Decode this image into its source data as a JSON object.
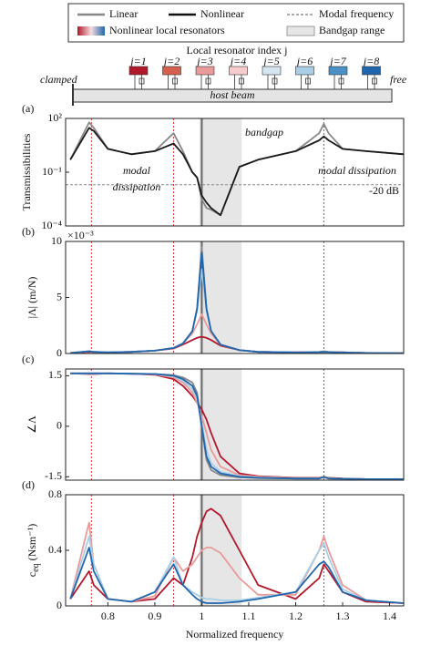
{
  "legend": {
    "items": [
      "Linear",
      "Nonlinear",
      "Modal frequency",
      "Nonlinear local resonators",
      "Bandgap range"
    ]
  },
  "schematic": {
    "title": "Local resonator index j",
    "left": "clamped",
    "right": "free",
    "beam": "host beam",
    "resonators": [
      "j=1",
      "j=2",
      "j=3",
      "j=4",
      "j=5",
      "j=6",
      "j=7",
      "j=8"
    ],
    "colors": [
      "#b2182b",
      "#d6604d",
      "#e99a9a",
      "#f7cccc",
      "#d4e6f1",
      "#a9cfe6",
      "#4a92c6",
      "#2166ac"
    ]
  },
  "reference": {
    "modal_frequencies": [
      0.765,
      0.94,
      1.26
    ],
    "bandgap": [
      0.995,
      1.085
    ],
    "resonance": 1.0
  },
  "chart_data": [
    {
      "type": "line",
      "panel": "(a)",
      "ylabel": "Transmissibilities",
      "yscale": "log",
      "xlim": [
        0.71,
        1.43
      ],
      "ylim": [
        0.0001,
        100
      ],
      "yticks": [
        {
          "value": 100,
          "label": "10²"
        },
        {
          "value": 0.1,
          "label": "10⁻¹"
        },
        {
          "value": 0.0001,
          "label": "10⁻⁴"
        }
      ],
      "threshold": 0.02,
      "annotations": [
        "bandgap",
        "modal",
        "dissipation",
        "modal dissipation",
        "-20 dB"
      ],
      "x": [
        0.72,
        0.76,
        0.77,
        0.8,
        0.85,
        0.9,
        0.94,
        0.96,
        0.98,
        0.99,
        1.0,
        1.01,
        1.02,
        1.04,
        1.08,
        1.12,
        1.2,
        1.25,
        1.26,
        1.27,
        1.3,
        1.35,
        1.43
      ],
      "series": [
        {
          "color": "#888888",
          "values": [
            0.5,
            60,
            30,
            2,
            1,
            1.5,
            15,
            1.5,
            0.1,
            0.05,
            0.003,
            0.001,
            0.0008,
            0.0004,
            0.2,
            0.5,
            1.5,
            15,
            50,
            15,
            2,
            1.5,
            1
          ]
        },
        {
          "color": "#1a1a1a",
          "values": [
            0.5,
            30,
            20,
            2,
            1,
            1.5,
            4,
            1,
            0.1,
            0.05,
            0.005,
            0.002,
            0.001,
            0.0004,
            0.2,
            0.5,
            1.5,
            6,
            10,
            6,
            2,
            1.5,
            1
          ]
        }
      ]
    },
    {
      "type": "line",
      "panel": "(b)",
      "ylabel": "|Λ| (m/N)",
      "multiplier": "×10⁻³",
      "xlim": [
        0.71,
        1.43
      ],
      "ylim": [
        0,
        10
      ],
      "yticks": [
        0,
        5,
        10
      ],
      "x": [
        0.72,
        0.76,
        0.77,
        0.8,
        0.85,
        0.9,
        0.94,
        0.96,
        0.98,
        0.99,
        1.0,
        1.01,
        1.02,
        1.04,
        1.08,
        1.12,
        1.2,
        1.25,
        1.26,
        1.27,
        1.3,
        1.35,
        1.43
      ],
      "series": [
        {
          "color": "#888888",
          "values": [
            0.05,
            0.2,
            0.15,
            0.1,
            0.15,
            0.25,
            0.5,
            0.9,
            2,
            4,
            9.5,
            4,
            2,
            0.8,
            0.3,
            0.15,
            0.1,
            0.15,
            0.2,
            0.15,
            0.1,
            0.05,
            0.03
          ]
        },
        {
          "color": "#b2182b",
          "values": [
            0.05,
            0.15,
            0.12,
            0.1,
            0.15,
            0.25,
            0.45,
            0.8,
            1.2,
            1.4,
            1.5,
            1.4,
            1.2,
            0.7,
            0.3,
            0.15,
            0.1,
            0.12,
            0.14,
            0.12,
            0.1,
            0.05,
            0.03
          ]
        },
        {
          "color": "#e99a9a",
          "values": [
            0.05,
            0.2,
            0.15,
            0.1,
            0.15,
            0.25,
            0.5,
            0.9,
            1.8,
            2.6,
            3.5,
            2.6,
            1.8,
            0.8,
            0.3,
            0.15,
            0.1,
            0.12,
            0.15,
            0.12,
            0.1,
            0.05,
            0.03
          ]
        },
        {
          "color": "#a9cfe6",
          "values": [
            0.05,
            0.2,
            0.15,
            0.1,
            0.15,
            0.25,
            0.5,
            0.9,
            2,
            3.8,
            7.5,
            3.8,
            2,
            0.8,
            0.3,
            0.15,
            0.1,
            0.12,
            0.15,
            0.12,
            0.1,
            0.05,
            0.03
          ]
        },
        {
          "color": "#2166ac",
          "values": [
            0.05,
            0.2,
            0.15,
            0.1,
            0.15,
            0.25,
            0.5,
            0.9,
            2,
            4,
            9,
            4,
            2,
            0.8,
            0.3,
            0.15,
            0.1,
            0.12,
            0.15,
            0.12,
            0.1,
            0.05,
            0.03
          ]
        }
      ]
    },
    {
      "type": "line",
      "panel": "(c)",
      "ylabel": "∠Λ",
      "xlim": [
        0.71,
        1.43
      ],
      "ylim": [
        -1.6,
        1.7
      ],
      "yticks": [
        1.5,
        0,
        -1.5
      ],
      "x": [
        0.72,
        0.76,
        0.77,
        0.8,
        0.85,
        0.9,
        0.94,
        0.96,
        0.98,
        0.99,
        1.0,
        1.01,
        1.02,
        1.04,
        1.08,
        1.12,
        1.2,
        1.25,
        1.26,
        1.27,
        1.3,
        1.35,
        1.43
      ],
      "series": [
        {
          "color": "#888888",
          "values": [
            1.57,
            1.57,
            1.57,
            1.57,
            1.56,
            1.55,
            1.52,
            1.45,
            1.3,
            1.0,
            0,
            -1.0,
            -1.3,
            -1.45,
            -1.52,
            -1.54,
            -1.55,
            -1.55,
            -1.52,
            -1.55,
            -1.56,
            -1.57,
            -1.57
          ]
        },
        {
          "color": "#b2182b",
          "values": [
            1.57,
            1.55,
            1.55,
            1.57,
            1.56,
            1.53,
            1.4,
            1.2,
            0.9,
            0.7,
            0.5,
            0.2,
            -0.2,
            -0.9,
            -1.4,
            -1.48,
            -1.53,
            -1.53,
            -1.5,
            -1.53,
            -1.55,
            -1.57,
            -1.57
          ]
        },
        {
          "color": "#e99a9a",
          "values": [
            1.57,
            1.57,
            1.57,
            1.57,
            1.56,
            1.54,
            1.45,
            1.3,
            1.0,
            0.7,
            0.3,
            -0.2,
            -0.7,
            -1.2,
            -1.45,
            -1.5,
            -1.54,
            -1.54,
            -1.5,
            -1.54,
            -1.56,
            -1.57,
            -1.57
          ]
        },
        {
          "color": "#a9cfe6",
          "values": [
            1.57,
            1.57,
            1.57,
            1.57,
            1.56,
            1.55,
            1.48,
            1.35,
            1.1,
            0.8,
            0.1,
            -0.7,
            -1.1,
            -1.35,
            -1.48,
            -1.52,
            -1.55,
            -1.55,
            -1.5,
            -1.55,
            -1.56,
            -1.57,
            -1.57
          ]
        },
        {
          "color": "#2166ac",
          "values": [
            1.57,
            1.57,
            1.57,
            1.57,
            1.56,
            1.55,
            1.5,
            1.4,
            1.2,
            0.9,
            0,
            -0.9,
            -1.2,
            -1.4,
            -1.5,
            -1.53,
            -1.55,
            -1.55,
            -1.5,
            -1.55,
            -1.56,
            -1.57,
            -1.57
          ]
        }
      ]
    },
    {
      "type": "line",
      "panel": "(d)",
      "ylabel": "c",
      "ylabel_sub": "eq",
      "ylabel_unit": "(Nsm⁻¹)",
      "xlabel": "Normalized frequency",
      "xlim": [
        0.71,
        1.43
      ],
      "ylim": [
        0,
        0.8
      ],
      "yticks": [
        0,
        0.4,
        0.8
      ],
      "xticks": [
        0.8,
        0.9,
        1,
        1.1,
        1.2,
        1.3,
        1.4
      ],
      "x": [
        0.72,
        0.76,
        0.77,
        0.8,
        0.85,
        0.9,
        0.94,
        0.96,
        0.98,
        0.99,
        1.0,
        1.01,
        1.02,
        1.04,
        1.08,
        1.12,
        1.2,
        1.25,
        1.26,
        1.27,
        1.3,
        1.35,
        1.43
      ],
      "series": [
        {
          "color": "#b2182b",
          "values": [
            0.05,
            0.25,
            0.15,
            0.05,
            0.03,
            0.05,
            0.2,
            0.15,
            0.35,
            0.5,
            0.6,
            0.68,
            0.7,
            0.65,
            0.4,
            0.15,
            0.05,
            0.2,
            0.3,
            0.25,
            0.1,
            0.03,
            0.02
          ]
        },
        {
          "color": "#e99a9a",
          "values": [
            0.05,
            0.6,
            0.3,
            0.05,
            0.03,
            0.07,
            0.35,
            0.25,
            0.3,
            0.35,
            0.4,
            0.42,
            0.42,
            0.38,
            0.2,
            0.08,
            0.08,
            0.4,
            0.5,
            0.4,
            0.15,
            0.04,
            0.02
          ]
        },
        {
          "color": "#a9cfe6",
          "values": [
            0.05,
            0.5,
            0.3,
            0.05,
            0.03,
            0.1,
            0.35,
            0.15,
            0.1,
            0.08,
            0.06,
            0.05,
            0.05,
            0.04,
            0.04,
            0.06,
            0.1,
            0.4,
            0.45,
            0.35,
            0.12,
            0.04,
            0.02
          ]
        },
        {
          "color": "#2166ac",
          "values": [
            0.05,
            0.42,
            0.25,
            0.05,
            0.03,
            0.1,
            0.3,
            0.15,
            0.08,
            0.05,
            0.03,
            0.02,
            0.02,
            0.02,
            0.03,
            0.05,
            0.1,
            0.3,
            0.32,
            0.28,
            0.1,
            0.04,
            0.02
          ]
        }
      ]
    }
  ]
}
